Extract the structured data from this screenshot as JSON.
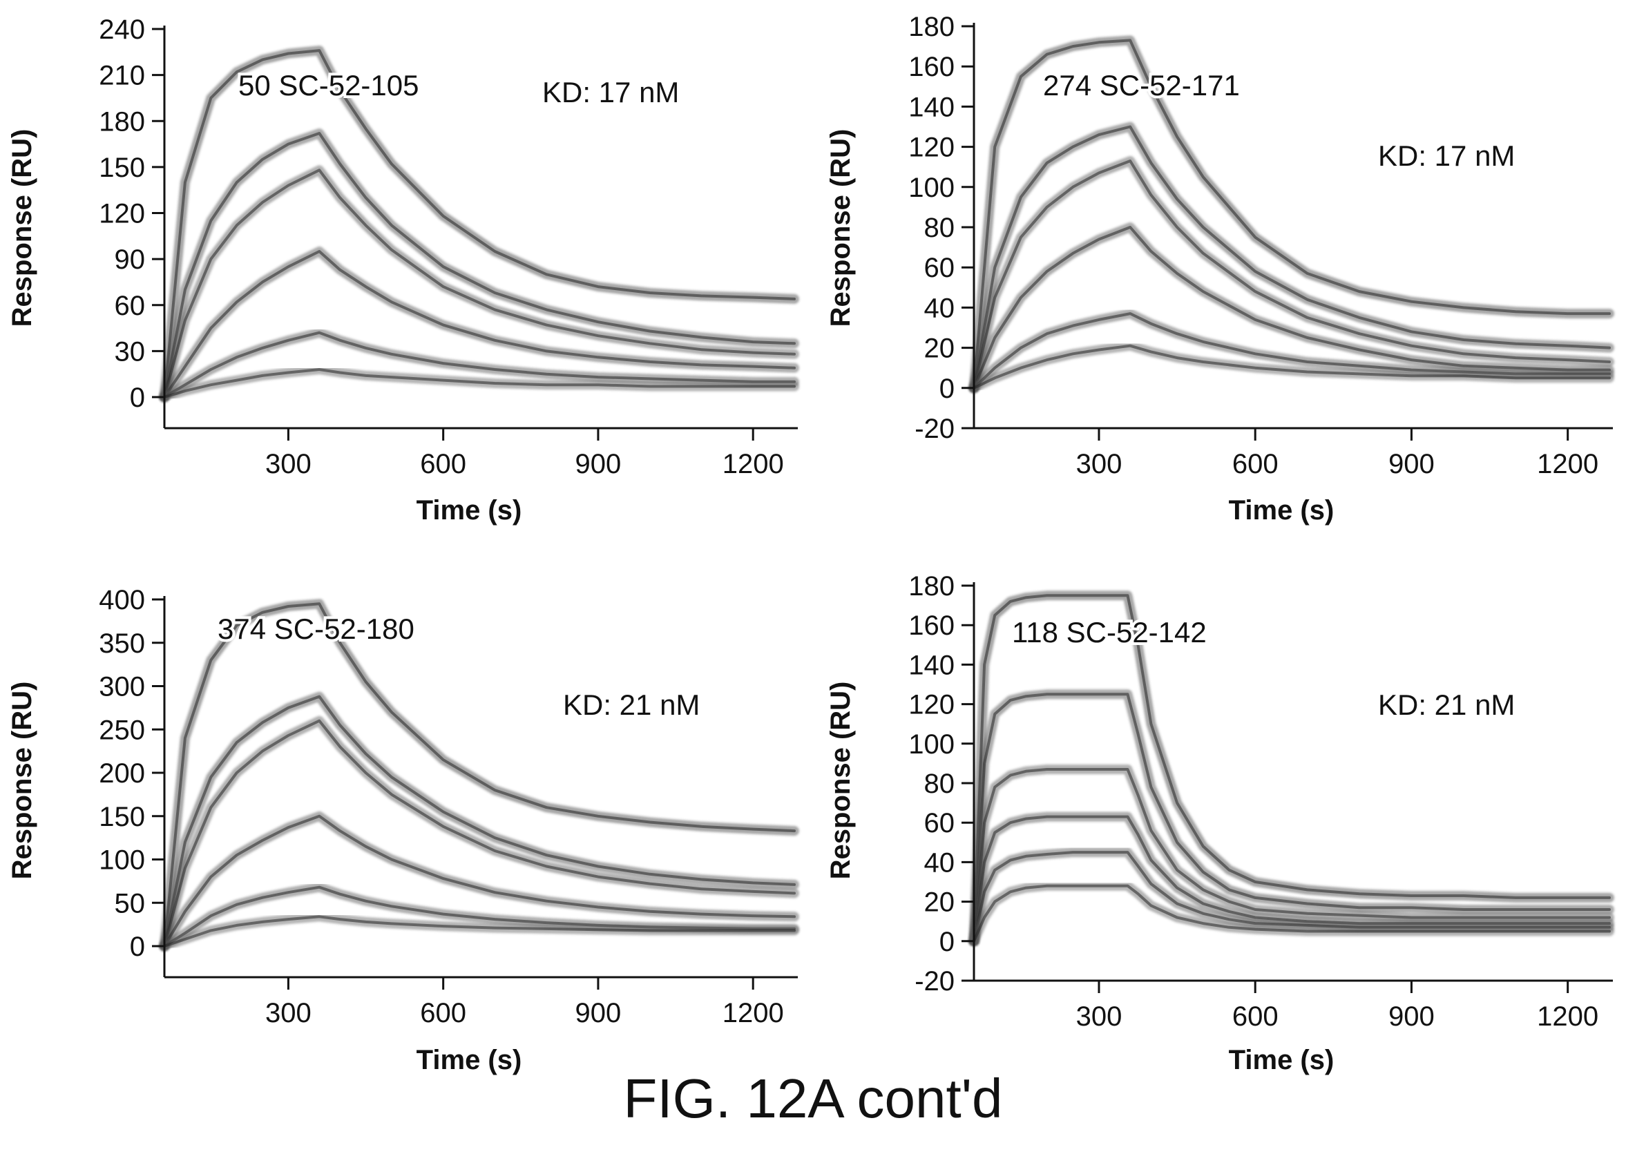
{
  "figure_caption": "FIG. 12A cont'd",
  "chart_data": [
    {
      "type": "line",
      "title": "50 SC-52-105",
      "annotation": "KD: 17 nM",
      "xlabel": "Time (s)",
      "ylabel": "Response (RU)",
      "xlim": [
        60,
        1280
      ],
      "ylim": [
        -10,
        250
      ],
      "xticks": [
        300,
        600,
        900,
        1200
      ],
      "yticks": [
        0,
        30,
        60,
        90,
        120,
        150,
        180,
        210,
        240
      ],
      "x": [
        60,
        100,
        150,
        200,
        250,
        300,
        360,
        400,
        450,
        500,
        600,
        700,
        800,
        900,
        1000,
        1100,
        1200,
        1280
      ],
      "series": [
        {
          "values": [
            0,
            140,
            195,
            212,
            220,
            224,
            226,
            200,
            175,
            152,
            118,
            95,
            80,
            72,
            68,
            66,
            65,
            64
          ]
        },
        {
          "values": [
            0,
            70,
            115,
            140,
            155,
            165,
            172,
            152,
            130,
            112,
            85,
            68,
            57,
            49,
            43,
            39,
            36,
            35
          ]
        },
        {
          "values": [
            0,
            50,
            90,
            112,
            127,
            138,
            148,
            130,
            112,
            96,
            72,
            57,
            47,
            40,
            35,
            31,
            29,
            28
          ]
        },
        {
          "values": [
            0,
            20,
            45,
            62,
            75,
            85,
            95,
            83,
            72,
            62,
            47,
            37,
            30,
            26,
            23,
            21,
            20,
            19
          ]
        },
        {
          "values": [
            0,
            8,
            18,
            26,
            32,
            37,
            42,
            37,
            32,
            28,
            22,
            18,
            15,
            13,
            12,
            11,
            10,
            10
          ]
        },
        {
          "values": [
            0,
            4,
            8,
            11,
            14,
            16,
            18,
            16,
            14,
            13,
            11,
            9,
            8,
            8,
            7,
            7,
            7,
            7
          ]
        }
      ]
    },
    {
      "type": "line",
      "title": "274 SC-52-171",
      "annotation": "KD: 17 nM",
      "xlabel": "Time (s)",
      "ylabel": "Response (RU)",
      "xlim": [
        60,
        1280
      ],
      "ylim": [
        -20,
        180
      ],
      "xticks": [
        300,
        600,
        900,
        1200
      ],
      "yticks": [
        -20,
        0,
        20,
        40,
        60,
        80,
        100,
        120,
        140,
        160,
        180
      ],
      "x": [
        60,
        100,
        150,
        200,
        250,
        300,
        360,
        400,
        450,
        500,
        600,
        700,
        800,
        900,
        1000,
        1100,
        1200,
        1280
      ],
      "series": [
        {
          "values": [
            0,
            120,
            155,
            166,
            170,
            172,
            173,
            150,
            125,
            105,
            75,
            57,
            48,
            43,
            40,
            38,
            37,
            37
          ]
        },
        {
          "values": [
            0,
            60,
            95,
            112,
            120,
            126,
            130,
            112,
            94,
            80,
            58,
            44,
            35,
            28,
            24,
            22,
            21,
            20
          ]
        },
        {
          "values": [
            0,
            45,
            75,
            90,
            100,
            107,
            113,
            96,
            80,
            67,
            48,
            35,
            27,
            21,
            17,
            15,
            14,
            13
          ]
        },
        {
          "values": [
            0,
            25,
            45,
            58,
            67,
            74,
            80,
            68,
            57,
            48,
            34,
            25,
            19,
            14,
            11,
            10,
            9,
            9
          ]
        },
        {
          "values": [
            0,
            10,
            20,
            27,
            31,
            34,
            37,
            32,
            27,
            23,
            17,
            13,
            11,
            9,
            8,
            7,
            7,
            7
          ]
        },
        {
          "values": [
            0,
            5,
            10,
            14,
            17,
            19,
            21,
            18,
            15,
            13,
            10,
            8,
            7,
            6,
            6,
            5,
            5,
            5
          ]
        }
      ]
    },
    {
      "type": "line",
      "title": "374 SC-52-180",
      "annotation": "KD: 21 nM",
      "xlabel": "Time (s)",
      "ylabel": "Response (RU)",
      "xlim": [
        60,
        1280
      ],
      "ylim": [
        -20,
        410
      ],
      "xticks": [
        300,
        600,
        900,
        1200
      ],
      "yticks": [
        0,
        50,
        100,
        150,
        200,
        250,
        300,
        350,
        400
      ],
      "x": [
        60,
        100,
        150,
        200,
        250,
        300,
        360,
        400,
        450,
        500,
        600,
        700,
        800,
        900,
        1000,
        1100,
        1200,
        1280
      ],
      "series": [
        {
          "values": [
            0,
            240,
            330,
            370,
            385,
            392,
            395,
            350,
            305,
            270,
            215,
            180,
            160,
            150,
            143,
            138,
            135,
            133
          ]
        },
        {
          "values": [
            0,
            120,
            195,
            235,
            258,
            275,
            288,
            255,
            222,
            195,
            155,
            125,
            105,
            92,
            83,
            77,
            73,
            71
          ]
        },
        {
          "values": [
            0,
            90,
            160,
            200,
            225,
            243,
            260,
            230,
            200,
            175,
            138,
            110,
            92,
            80,
            72,
            66,
            63,
            61
          ]
        },
        {
          "values": [
            0,
            40,
            80,
            105,
            122,
            137,
            150,
            133,
            115,
            100,
            78,
            62,
            52,
            45,
            40,
            37,
            35,
            34
          ]
        },
        {
          "values": [
            0,
            15,
            35,
            48,
            56,
            62,
            68,
            60,
            52,
            46,
            37,
            31,
            27,
            24,
            22,
            21,
            20,
            20
          ]
        },
        {
          "values": [
            0,
            8,
            18,
            24,
            28,
            31,
            34,
            31,
            28,
            26,
            23,
            21,
            20,
            19,
            18,
            18,
            18,
            18
          ]
        }
      ]
    },
    {
      "type": "line",
      "title": "118 SC-52-142",
      "annotation": "KD: 21 nM",
      "xlabel": "Time (s)",
      "ylabel": "Response (RU)",
      "xlim": [
        60,
        1280
      ],
      "ylim": [
        -20,
        180
      ],
      "xticks": [
        300,
        600,
        900,
        1200
      ],
      "yticks": [
        -20,
        0,
        20,
        40,
        60,
        80,
        100,
        120,
        140,
        160,
        180
      ],
      "x": [
        60,
        80,
        100,
        130,
        160,
        200,
        250,
        300,
        355,
        375,
        400,
        450,
        500,
        550,
        600,
        700,
        800,
        900,
        1000,
        1100,
        1200,
        1280
      ],
      "series": [
        {
          "values": [
            0,
            140,
            165,
            172,
            174,
            175,
            175,
            175,
            175,
            150,
            110,
            70,
            48,
            36,
            30,
            26,
            24,
            23,
            23,
            22,
            22,
            22
          ]
        },
        {
          "values": [
            0,
            90,
            115,
            122,
            124,
            125,
            125,
            125,
            125,
            105,
            78,
            50,
            35,
            26,
            22,
            19,
            17,
            17,
            16,
            16,
            16,
            16
          ]
        },
        {
          "values": [
            0,
            60,
            78,
            84,
            86,
            87,
            87,
            87,
            87,
            74,
            56,
            36,
            26,
            20,
            16,
            14,
            13,
            12,
            12,
            12,
            12,
            12
          ]
        },
        {
          "values": [
            0,
            40,
            55,
            60,
            62,
            63,
            63,
            63,
            63,
            54,
            41,
            27,
            19,
            15,
            12,
            10,
            9,
            9,
            9,
            9,
            9,
            9
          ]
        },
        {
          "values": [
            0,
            25,
            36,
            41,
            43,
            44,
            45,
            45,
            45,
            38,
            29,
            19,
            14,
            11,
            9,
            8,
            7,
            7,
            7,
            7,
            7,
            7
          ]
        },
        {
          "values": [
            0,
            12,
            20,
            25,
            27,
            28,
            28,
            28,
            28,
            24,
            18,
            12,
            9,
            7,
            6,
            5,
            5,
            5,
            5,
            5,
            5,
            5
          ]
        }
      ]
    }
  ]
}
